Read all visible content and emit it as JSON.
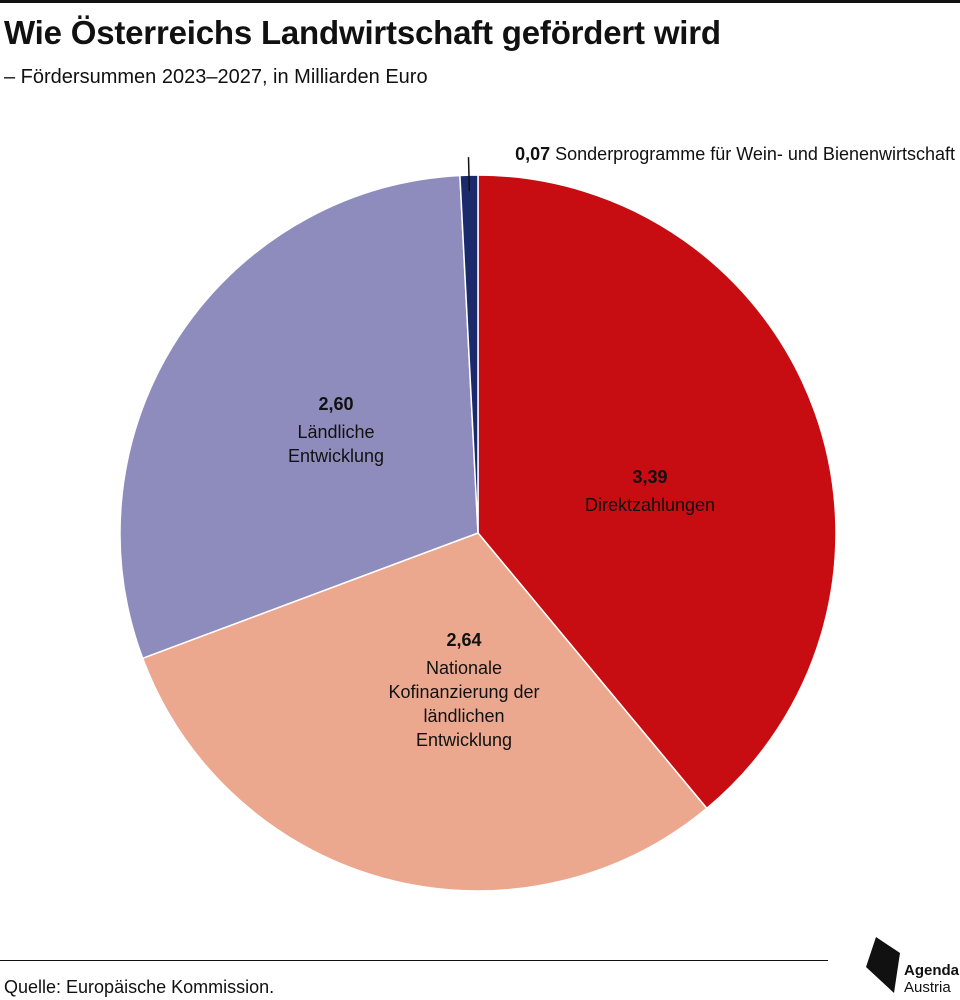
{
  "header": {
    "title": "Wie Österreichs Landwirtschaft gefördert wird",
    "subtitle": "– Fördersummen 2023–2027, in Milliarden Euro"
  },
  "footer": {
    "source": "Quelle: Europäische Kommission.",
    "logo_line1": "Agenda",
    "logo_line2": "Austria"
  },
  "chart_data": {
    "type": "pie",
    "title": "Wie Österreichs Landwirtschaft gefördert wird",
    "subtitle": "– Fördersummen 2023–2027, in Milliarden Euro",
    "start_angle_deg": 0,
    "direction": "clockwise",
    "slices": [
      {
        "id": "direktzahlungen",
        "value": 3.39,
        "value_label": "3,39",
        "label_lines": [
          "Direktzahlungen"
        ],
        "color": "#c70d11"
      },
      {
        "id": "nationale-kofinanzierung",
        "value": 2.64,
        "value_label": "2,64",
        "label_lines": [
          "Nationale",
          "Kofinanzierung der",
          "ländlichen",
          "Entwicklung"
        ],
        "color": "#eba88f"
      },
      {
        "id": "laendliche-entwicklung",
        "value": 2.6,
        "value_label": "2,60",
        "label_lines": [
          "Ländliche",
          "Entwicklung"
        ],
        "color": "#8e8cbc"
      },
      {
        "id": "sonderprogramme",
        "value": 0.07,
        "value_label": "0,07",
        "label_lines": [
          "Sonderprogramme für Wein- und Bienenwirtschaft"
        ],
        "color": "#1b2a6b",
        "label_outside": true
      }
    ]
  }
}
